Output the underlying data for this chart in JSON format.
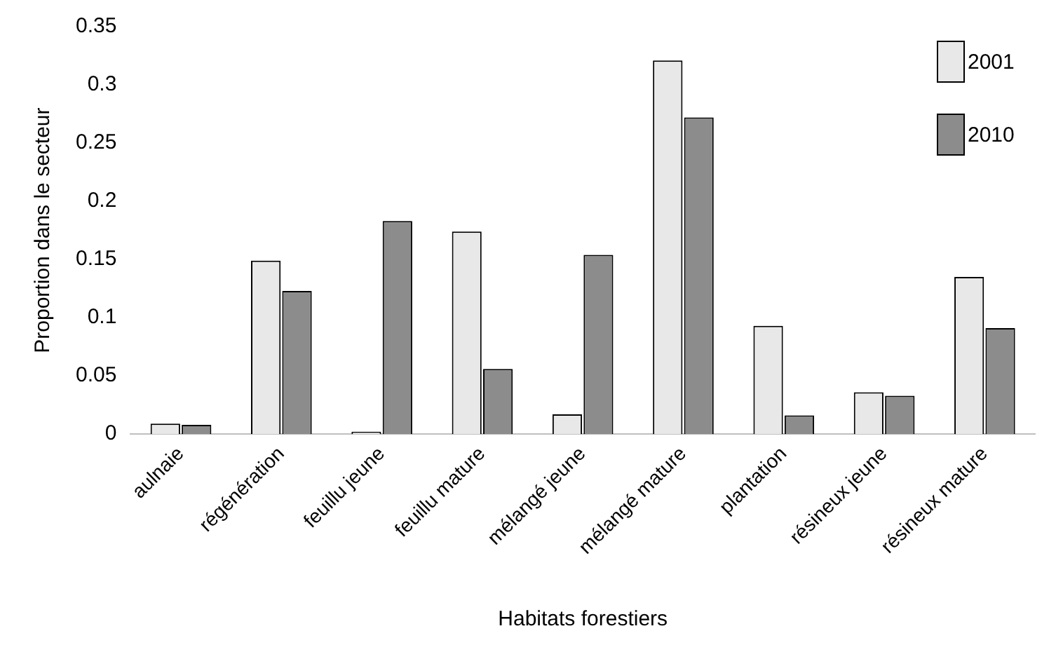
{
  "chart_data": {
    "type": "bar",
    "xlabel": "Habitats forestiers",
    "ylabel": "Proportion dans le secteur",
    "categories": [
      "aulnaie",
      "régénération",
      "feuillu jeune",
      "feuillu mature",
      "mélangé jeune",
      "mélangé mature",
      "plantation",
      "résineux jeune",
      "résineux mature"
    ],
    "series": [
      {
        "name": "2001",
        "color": "#e8e8e8",
        "values": [
          0.009,
          0.149,
          0.002,
          0.174,
          0.017,
          0.321,
          0.093,
          0.036,
          0.135
        ]
      },
      {
        "name": "2010",
        "color": "#8c8c8c",
        "values": [
          0.008,
          0.123,
          0.183,
          0.056,
          0.154,
          0.272,
          0.016,
          0.033,
          0.091
        ]
      }
    ],
    "ylim": [
      0,
      0.35
    ],
    "yticks": [
      0,
      0.05,
      0.1,
      0.15,
      0.2,
      0.25,
      0.3,
      0.35
    ],
    "grid": false,
    "legend": "top right"
  }
}
